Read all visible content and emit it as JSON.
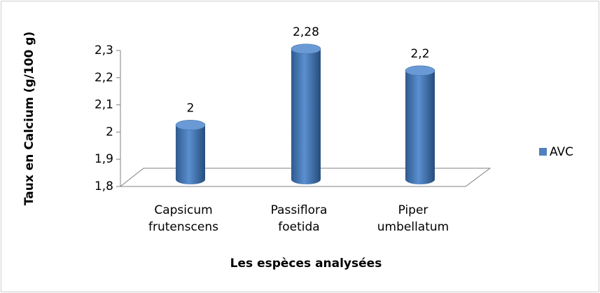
{
  "chart_data": {
    "type": "bar3d",
    "x_label": "Les espèces analysées",
    "y_label": "Taux en Calcium (g/100 g)",
    "categories": [
      "Capsicum frutenscens",
      "Passiflora foetida",
      "Piper umbellatum"
    ],
    "series": [
      {
        "name": "AVC",
        "color": "#4f81bd",
        "values": [
          2,
          2.28,
          2.2
        ],
        "value_labels": [
          "2",
          "2,28",
          "2,2"
        ]
      }
    ],
    "ylim": [
      1.8,
      2.3
    ],
    "yticks": [
      {
        "value": 1.8,
        "label": "1,8"
      },
      {
        "value": 1.9,
        "label": "1,9"
      },
      2,
      {
        "value": 2.1,
        "label": "2,1"
      },
      {
        "value": 2.2,
        "label": "2,2"
      },
      {
        "value": 2.3,
        "label": "2,3"
      }
    ],
    "legend": "right"
  }
}
